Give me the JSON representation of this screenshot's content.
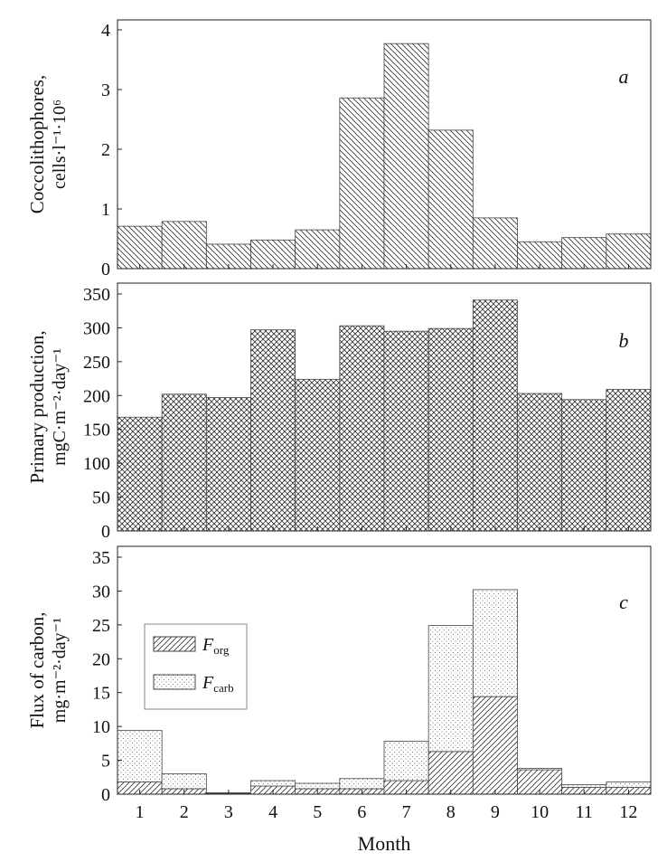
{
  "chart_data": [
    {
      "type": "bar",
      "panel_label": "a",
      "ylabel_line1": "Coccolithophores,",
      "ylabel_line2": "cells·l⁻¹·10⁶",
      "ylim": [
        0,
        4
      ],
      "yticks": [
        0,
        1,
        2,
        3,
        4
      ],
      "categories": [
        "1",
        "2",
        "3",
        "4",
        "5",
        "6",
        "7",
        "8",
        "9",
        "10",
        "11",
        "12"
      ],
      "values": [
        0.71,
        0.79,
        0.41,
        0.48,
        0.65,
        2.86,
        3.77,
        2.32,
        0.85,
        0.45,
        0.52,
        0.58
      ],
      "pattern": "diagonal-back"
    },
    {
      "type": "bar",
      "panel_label": "b",
      "ylabel_line1": "Primary production,",
      "ylabel_line2": "mgC·m⁻²·day⁻¹",
      "ylim": [
        0,
        350
      ],
      "yticks": [
        0,
        50,
        100,
        150,
        200,
        250,
        300,
        350
      ],
      "categories": [
        "1",
        "2",
        "3",
        "4",
        "5",
        "6",
        "7",
        "8",
        "9",
        "10",
        "11",
        "12"
      ],
      "values": [
        168,
        202,
        197,
        297,
        224,
        303,
        295,
        299,
        341,
        203,
        194,
        209
      ],
      "pattern": "crosshatch"
    },
    {
      "type": "bar",
      "stacked": true,
      "panel_label": "c",
      "ylabel_line1": "Flux of carbon,",
      "ylabel_line2": "mg·m⁻²·day⁻¹",
      "xlabel": "Month",
      "ylim": [
        0,
        35
      ],
      "yticks": [
        0,
        5,
        10,
        15,
        20,
        25,
        30,
        35
      ],
      "categories": [
        "1",
        "2",
        "3",
        "4",
        "5",
        "6",
        "7",
        "8",
        "9",
        "10",
        "11",
        "12"
      ],
      "series": [
        {
          "name": "F",
          "sub": "org",
          "pattern": "diagonal-forward",
          "values": [
            1.8,
            0.8,
            0.1,
            1.2,
            0.8,
            0.8,
            2.0,
            6.3,
            14.4,
            3.6,
            1.0,
            1.0
          ]
        },
        {
          "name": "F",
          "sub": "carb",
          "pattern": "dots",
          "values": [
            7.6,
            2.2,
            0.1,
            0.8,
            0.8,
            1.5,
            5.8,
            18.6,
            15.8,
            0.2,
            0.4,
            0.8
          ]
        }
      ],
      "legend_position": "upper-left"
    }
  ]
}
